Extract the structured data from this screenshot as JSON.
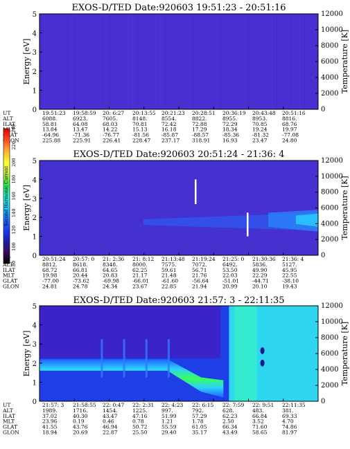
{
  "chart_data": [
    {
      "type": "heatmap",
      "title": "EXOS-D/TED   Date:920603   19:51:23 - 20:51:16",
      "ylabel": "Energy [eV]",
      "y2label": "Temperature [K]",
      "ylim": [
        0,
        5
      ],
      "y2lim": [
        0,
        12000
      ],
      "yticks": [
        "0",
        "1",
        "2",
        "3",
        "4",
        "5"
      ],
      "y2ticks": [
        "0",
        "2000",
        "4000",
        "6000",
        "8000",
        "10000",
        "12000"
      ],
      "params": [
        "UT",
        "ALT",
        "ILAT",
        "MLT",
        "GLAT",
        "GLON"
      ],
      "columns": [
        [
          "19:51:23",
          "6088.",
          "58.81",
          "13.84",
          "-64.96",
          "225.88"
        ],
        [
          "19:58:59",
          "6923.",
          "64.08",
          "13.47",
          "-71.36",
          "225.91"
        ],
        [
          "20: 6:27",
          "7605.",
          "68.03",
          "14.22",
          "-76.77",
          "226.41"
        ],
        [
          "20:13:55",
          "8148.",
          "70.81",
          "15.13",
          "-81.56",
          "228.47"
        ],
        [
          "20:21:23",
          "8554.",
          "72.42",
          "16.18",
          "-85.87",
          "237.17"
        ],
        [
          "20:28:51",
          "8822.",
          "72.88",
          "17.29",
          "-88.57",
          "318.91"
        ],
        [
          "20:36:19",
          "8955.",
          "72.29",
          "18.34",
          "-85.36",
          "16.93"
        ],
        [
          "20:43:48",
          "8953.",
          "70.85",
          "19.24",
          "-81.32",
          "23.47"
        ],
        [
          "20:51:16",
          "8816.",
          "68.76",
          "19.97",
          "-77.08",
          "24.80"
        ]
      ]
    },
    {
      "type": "heatmap",
      "title": "EXOS-D/TED   Date:920603   20:51:24 - 21:36: 4",
      "ylabel": "Energy [eV]",
      "y2label": "Temperature [K]",
      "ylim": [
        0,
        5
      ],
      "y2lim": [
        0,
        12000
      ],
      "yticks": [
        "0",
        "1",
        "2",
        "3",
        "4",
        "5"
      ],
      "y2ticks": [
        "0",
        "2000",
        "4000",
        "6000",
        "8000",
        "10000",
        "12000"
      ],
      "params": [
        "UT",
        "ALT",
        "ILAT",
        "MLT",
        "GLAT",
        "GLON"
      ],
      "columns": [
        [
          "20:51:24",
          "8812.",
          "68.72",
          "19.98",
          "-77.00",
          "24.81"
        ],
        [
          "20:57: 0",
          "8618.",
          "66.81",
          "20.44",
          "-73.62",
          "24.78"
        ],
        [
          "21: 2:36",
          "8348.",
          "64.65",
          "20.83",
          "-69.98",
          "24.34"
        ],
        [
          "21: 8:12",
          "8000.",
          "62.25",
          "21.17",
          "-66.01",
          "23.67"
        ],
        [
          "21:13:48",
          "7575.",
          "59.61",
          "21.48",
          "-61.60",
          "22.85"
        ],
        [
          "21:19:24",
          "7072.",
          "56.71",
          "21.76",
          "-56.64",
          "21.94"
        ],
        [
          "21:25: 0",
          "6492.",
          "53.50",
          "22.03",
          "-51.01",
          "20.99"
        ],
        [
          "21:30:36",
          "5836.",
          "49.90",
          "22.29",
          "-44.71",
          "20.10"
        ],
        [
          "21:36: 4",
          "5127.",
          "45.95",
          "22.55",
          "-38.10",
          "19.43"
        ]
      ]
    },
    {
      "type": "heatmap",
      "title": "EXOS-D/TED   Date:920603   21:57: 3 - 22:11:35",
      "ylabel": "Energy [eV]",
      "y2label": "Temperature [K]",
      "ylim": [
        0,
        5
      ],
      "y2lim": [
        0,
        12000
      ],
      "yticks": [
        "0",
        "1",
        "2",
        "3",
        "4",
        "5"
      ],
      "y2ticks": [
        "0",
        "2000",
        "4000",
        "6000",
        "8000",
        "10000",
        "12000"
      ],
      "params": [
        "UT",
        "ALT",
        "ILAT",
        "MLT",
        "GLAT",
        "GLON"
      ],
      "columns": [
        [
          "21:57: 3",
          "1989.",
          "37.02",
          "23.96",
          "41.55",
          "18.94"
        ],
        [
          "21:58:55",
          "1716.",
          "40.30",
          "0.19",
          "43.76",
          "20.69"
        ],
        [
          "22: 0:47",
          "1454.",
          "43.47",
          "0.46",
          "46.94",
          "22.87"
        ],
        [
          "22: 2:31",
          "1225.",
          "47.16",
          "0.78",
          "50.72",
          "25.50"
        ],
        [
          "22: 4:23",
          "997.",
          "51.99",
          "1.21",
          "55.59",
          "29.40"
        ],
        [
          "22: 6:15",
          "792.",
          "57.29",
          "1.78",
          "61.05",
          "35.17"
        ],
        [
          "22: 7:59",
          "628.",
          "62.23",
          "2.50",
          "66.34",
          "43.49"
        ],
        [
          "22: 9:51",
          "483.",
          "66.84",
          "3.52",
          "71.60",
          "58.65"
        ],
        [
          "22:11:35",
          "381.",
          "69.33",
          "4.70",
          "74.86",
          "81.97"
        ]
      ]
    }
  ],
  "colorbar": {
    "label": "Second Harmonic Current",
    "ticks": [
      "80",
      "100",
      "120",
      "140",
      "160",
      "180",
      "200",
      "220",
      "240"
    ],
    "colors": [
      "#000000",
      "#3a0a5a",
      "#1e1ea8",
      "#1c3cf0",
      "#1f78ff",
      "#1ecbff",
      "#2ef0c8",
      "#30e84a",
      "#c8f040",
      "#ffff30",
      "#ffb030",
      "#ff4a1e",
      "#e00000"
    ]
  }
}
